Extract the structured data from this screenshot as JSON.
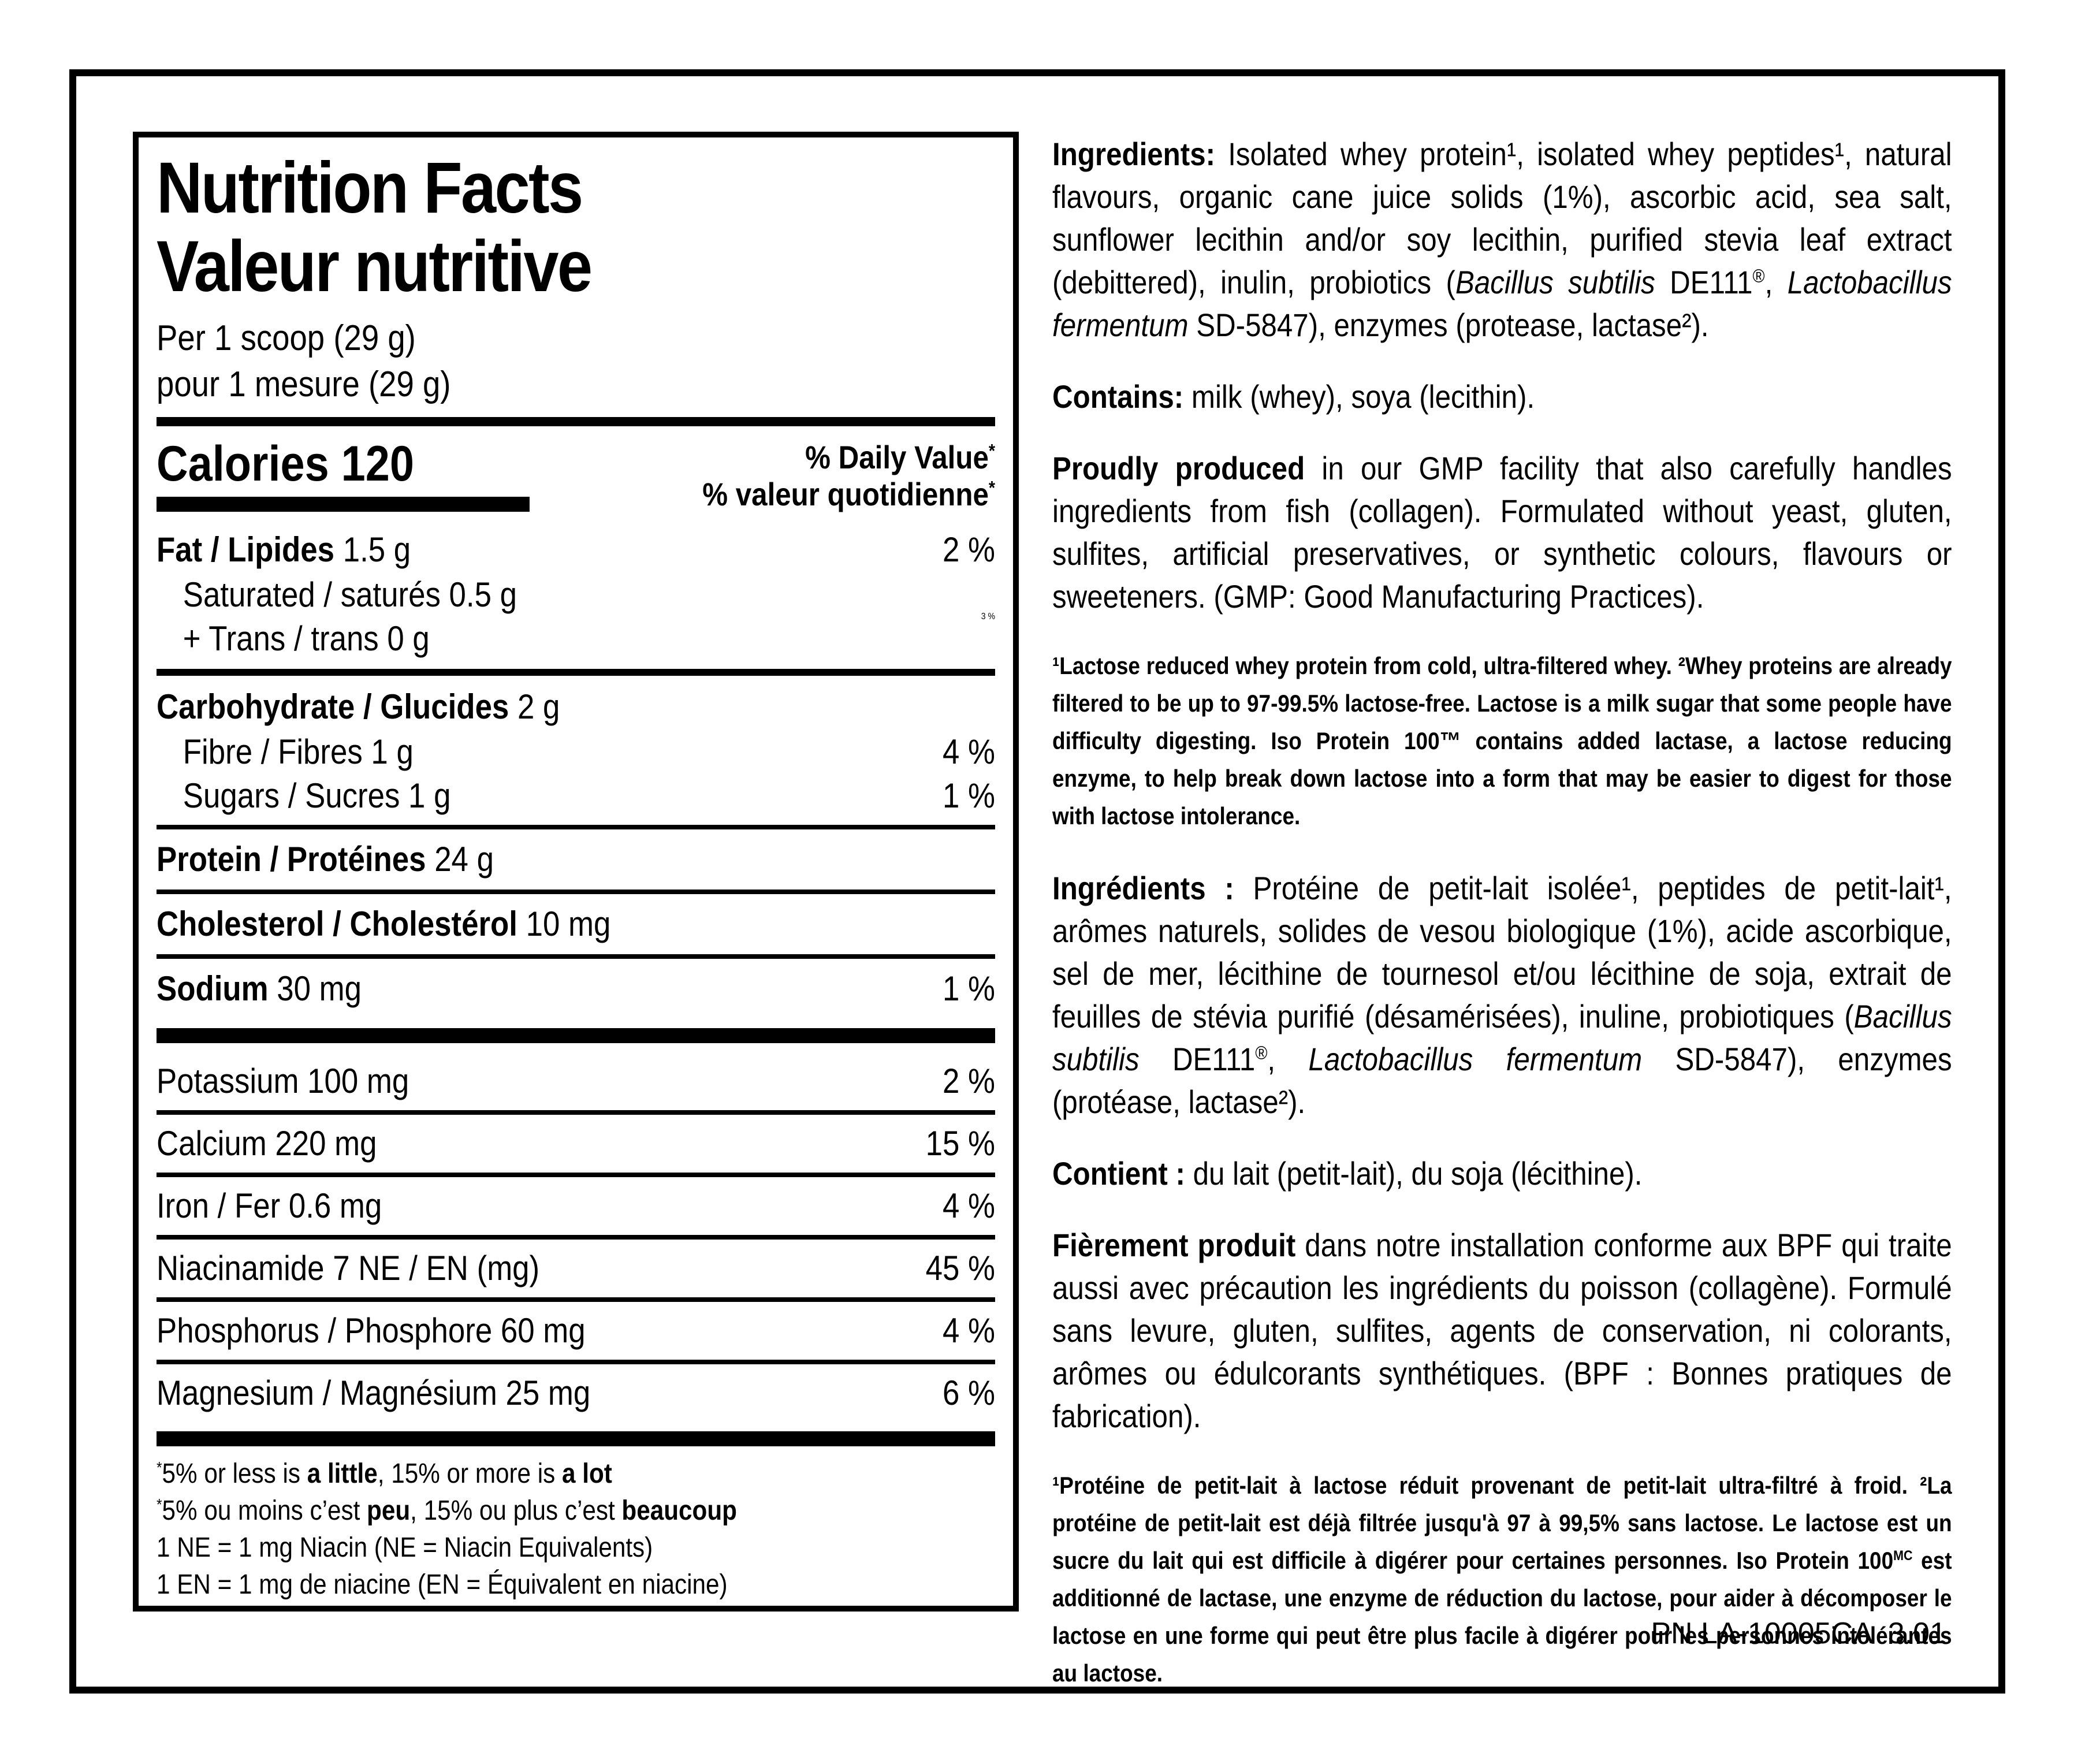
{
  "panel": {
    "title_en": "Nutrition Facts",
    "title_fr": "Valeur nutritive",
    "serving_en": "Per 1 scoop (29 g)",
    "serving_fr": "pour 1 mesure (29 g)",
    "calories_label": "Calories 120",
    "dv_header_en": [
      {
        "t": "% Daily Value"
      },
      {
        "t": "*",
        "sup": 1
      }
    ],
    "dv_header_fr": [
      {
        "t": "% valeur quotidienne"
      },
      {
        "t": "*",
        "sup": 1
      }
    ],
    "rows": {
      "fat": {
        "bold": "Fat / Lipides",
        "rest": " 1.5 g",
        "dv": "2 %"
      },
      "saturated": {
        "rest": "Saturated / saturés 0.5 g"
      },
      "trans": {
        "rest": "+ Trans / trans 0 g"
      },
      "sat_trans_dv": "3 %",
      "carbohydrate": {
        "bold": "Carbohydrate / Glucides",
        "rest": " 2 g",
        "dv": ""
      },
      "fibre": {
        "bold": "",
        "rest": "Fibre / Fibres 1 g",
        "dv": "4 %"
      },
      "sugars": {
        "bold": "",
        "rest": "Sugars / Sucres 1 g",
        "dv": "1 %"
      },
      "protein": {
        "bold": "Protein / Protéines",
        "rest": " 24 g",
        "dv": ""
      },
      "cholesterol": {
        "bold": "Cholesterol / Cholestérol",
        "rest": " 10 mg",
        "dv": ""
      },
      "sodium": {
        "bold": "Sodium",
        "rest": " 30 mg",
        "dv": "1 %"
      },
      "potassium": {
        "bold": "",
        "rest": "Potassium 100 mg",
        "dv": "2 %"
      },
      "calcium": {
        "bold": "",
        "rest": "Calcium 220 mg",
        "dv": "15 %"
      },
      "iron": {
        "bold": "",
        "rest": "Iron / Fer 0.6 mg",
        "dv": "4 %"
      },
      "niacinamide": {
        "bold": "",
        "rest": "Niacinamide 7 NE / EN (mg)",
        "dv": "45 %"
      },
      "phosphorus": {
        "bold": "",
        "rest": "Phosphorus / Phosphore 60 mg",
        "dv": "4 %"
      },
      "magnesium": {
        "bold": "",
        "rest": "Magnesium / Magnésium 25 mg",
        "dv": "6 %"
      }
    },
    "footnotes": [
      [
        {
          "t": "*",
          "sup": 1
        },
        {
          "t": "5% or less is "
        },
        {
          "t": "a little",
          "b": 1
        },
        {
          "t": ", 15% or more is "
        },
        {
          "t": "a lot",
          "b": 1
        }
      ],
      [
        {
          "t": "*",
          "sup": 1
        },
        {
          "t": "5% ou moins c’est "
        },
        {
          "t": "peu",
          "b": 1
        },
        {
          "t": ", 15% ou plus c’est "
        },
        {
          "t": "beaucoup",
          "b": 1
        }
      ],
      [
        {
          "t": "1 NE = 1 mg Niacin (NE = Niacin Equivalents)"
        }
      ],
      [
        {
          "t": "1 EN = 1 mg de niacine (EN = Équivalent en niacine)"
        }
      ]
    ]
  },
  "right": {
    "paragraphs": {
      "ingredients_en": [
        {
          "t": "Ingredients: ",
          "b": 1
        },
        {
          "t": "Isolated whey protein¹, isolated whey peptides¹, natural flavours, organic cane juice solids (1%), ascorbic acid, sea salt, sunflower lecithin and/or soy lecithin, purified stevia leaf extract (debittered), inulin, probiotics ("
        },
        {
          "t": "Bacillus subtilis",
          "i": 1
        },
        {
          "t": " DE111"
        },
        {
          "t": "®",
          "sup": 1
        },
        {
          "t": ", "
        },
        {
          "t": "Lactobacillus fermentum",
          "i": 1
        },
        {
          "t": " SD-5847), enzymes (protease, lactase²)."
        }
      ],
      "contains_en": [
        {
          "t": "Contains: ",
          "b": 1
        },
        {
          "t": "milk (whey), soya (lecithin)."
        }
      ],
      "produced_en": [
        {
          "t": "Proudly produced ",
          "b": 1
        },
        {
          "t": "in our GMP facility that also carefully handles ingredients from fish (collagen). Formulated without yeast, gluten, sulfites, artificial preservatives, or synthetic colours, flavours or sweeteners. (GMP: Good Manufacturing Practices)."
        }
      ],
      "footnote_en": [
        {
          "t": "¹Lactose reduced whey protein from cold, ultra-filtered whey. ²Whey proteins are already filtered to be up to 97-99.5% lactose-free. Lactose is a milk sugar that some people have difficulty digesting. Iso Protein 100™ contains added lactase, a lactose reducing enzyme, to help break down lactose into a form that may be easier to digest for those with lactose intolerance."
        }
      ],
      "ingredients_fr": [
        {
          "t": "Ingrédients : ",
          "b": 1
        },
        {
          "t": "Protéine de petit-lait isolée¹, peptides de petit-lait¹, arômes naturels, solides de vesou biologique (1%), acide ascorbique, sel de mer, lécithine de tournesol et/ou lécithine de soja, extrait de feuilles de stévia purifié (désamérisées), inuline, probiotiques ("
        },
        {
          "t": "Bacillus subtilis",
          "i": 1
        },
        {
          "t": " DE111"
        },
        {
          "t": "®",
          "sup": 1
        },
        {
          "t": ", "
        },
        {
          "t": "Lactobacillus fermentum",
          "i": 1
        },
        {
          "t": " SD-5847), enzymes (protéase, lactase²)."
        }
      ],
      "contains_fr": [
        {
          "t": "Contient : ",
          "b": 1
        },
        {
          "t": "du lait (petit-lait), du soja (lécithine)."
        }
      ],
      "produced_fr": [
        {
          "t": "Fièrement produit ",
          "b": 1
        },
        {
          "t": "dans notre installation conforme aux BPF qui traite aussi avec précaution les ingrédients du poisson (collagène). Formulé sans levure, gluten, sulfites, agents de conservation, ni colorants, arômes ou édulcorants synthétiques. (BPF : Bonnes pratiques de fabrication)."
        }
      ],
      "footnote_fr": [
        {
          "t": "¹Protéine de petit-lait à lactose réduit provenant de petit-lait ultra-filtré à froid. ²La protéine de petit-lait est déjà filtrée jusqu'à 97 à 99,5% sans lactose. Le lactose est un sucre du lait qui est difficile à digérer pour certaines personnes. Iso Protein 100"
        },
        {
          "t": "MC",
          "sup": 1
        },
        {
          "t": " est additionné de lactase, une enzyme de réduction du lactose, pour aider à décomposer le lactose en une forme qui peut être plus facile à digérer pour les personnes intolérantes au lactose."
        }
      ]
    },
    "part_number": "PN LA-10005CA  3.01"
  }
}
